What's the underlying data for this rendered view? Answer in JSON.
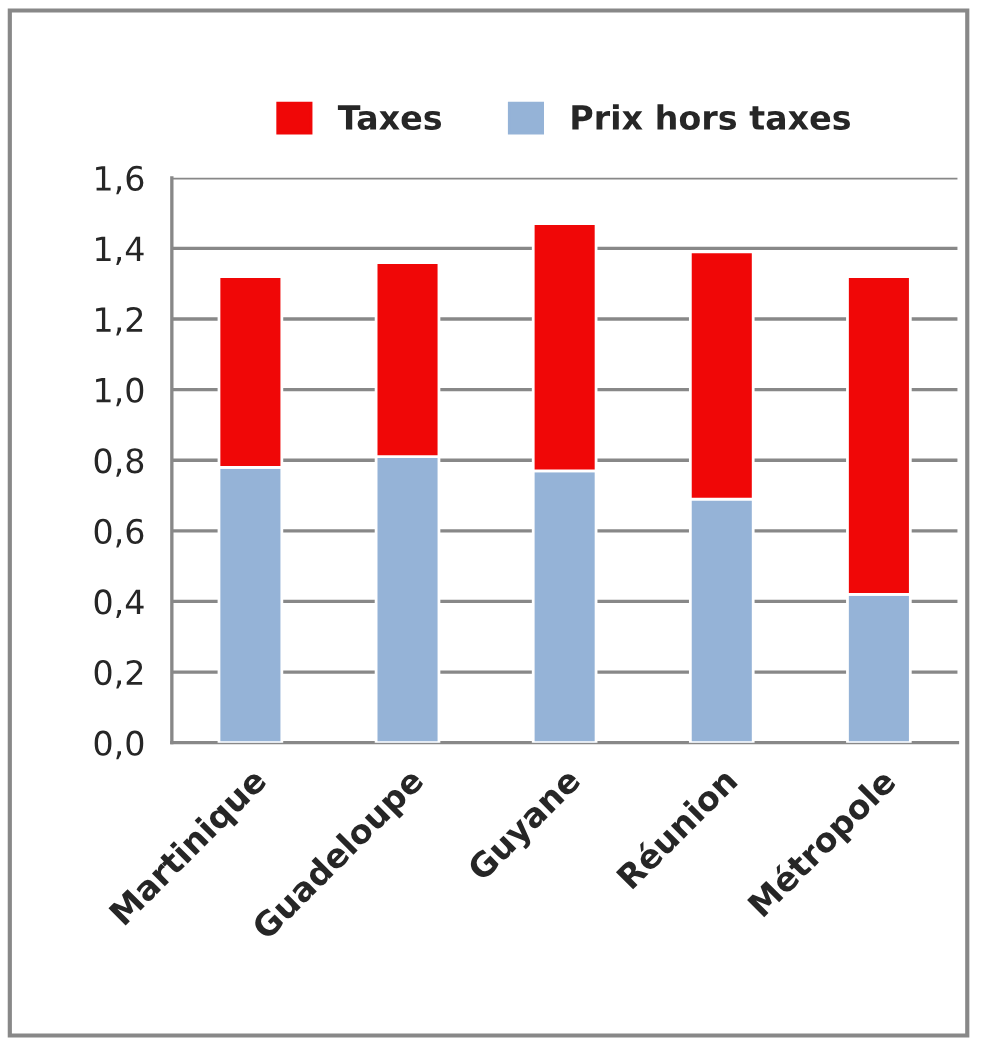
{
  "chart_data": {
    "type": "bar",
    "stacked": true,
    "categories": [
      "Martinique",
      "Guadeloupe",
      "Guyane",
      "Réunion",
      "Métropole"
    ],
    "series": [
      {
        "name": "Prix hors taxes",
        "color": "#95b3d7",
        "values": [
          0.78,
          0.81,
          0.77,
          0.69,
          0.42
        ]
      },
      {
        "name": "Taxes",
        "color": "#f00707",
        "values": [
          0.54,
          0.55,
          0.7,
          0.7,
          0.9
        ]
      }
    ],
    "ylim": [
      0,
      1.6
    ],
    "yticks": [
      {
        "value": 0,
        "label": "0,0"
      },
      {
        "value": 0.2,
        "label": "0,2"
      },
      {
        "value": 0.4,
        "label": "0,4"
      },
      {
        "value": 0.6,
        "label": "0,6"
      },
      {
        "value": 0.8,
        "label": "0,8"
      },
      {
        "value": 1.0,
        "label": "1,0"
      },
      {
        "value": 1.2,
        "label": "1,2"
      },
      {
        "value": 1.4,
        "label": "1,4"
      },
      {
        "value": 1.6,
        "label": "1,6"
      }
    ],
    "grid": "y",
    "legend": "top"
  }
}
